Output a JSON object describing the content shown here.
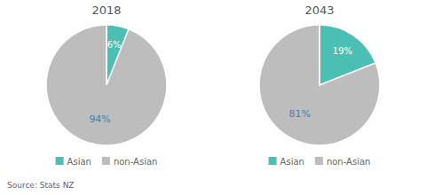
{
  "chart_data": [
    {
      "type": "pie",
      "title": "2018",
      "categories": [
        "Asian",
        "non-Asian"
      ],
      "values": [
        6,
        94
      ],
      "value_labels": [
        "6%",
        "94%"
      ],
      "colors": [
        "#4BBFB4",
        "#BDBDBD"
      ],
      "data_labels": true,
      "legend": "bottom"
    },
    {
      "type": "pie",
      "title": "2043",
      "categories": [
        "Asian",
        "non-Asian"
      ],
      "values": [
        19,
        81
      ],
      "value_labels": [
        "19%",
        "81%"
      ],
      "colors": [
        "#4BBFB4",
        "#BDBDBD"
      ],
      "data_labels": true,
      "legend": "bottom"
    }
  ],
  "source": "Source: Stats NZ"
}
